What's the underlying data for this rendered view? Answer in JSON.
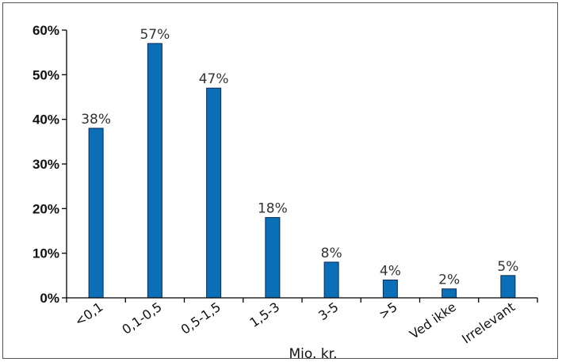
{
  "chart_data": {
    "type": "bar",
    "categories": [
      "<0,1",
      "0,1-0,5",
      "0,5-1,5",
      "1,5-3",
      "3-5",
      ">5",
      "Ved ikke",
      "Irrelevant"
    ],
    "values": [
      38,
      57,
      47,
      18,
      8,
      4,
      2,
      5
    ],
    "data_labels": [
      "38%",
      "57%",
      "47%",
      "18%",
      "8%",
      "4%",
      "2%",
      "5%"
    ],
    "xlabel": "Mio. kr.",
    "ylabel": "",
    "ylim": [
      0,
      60
    ],
    "yticks": [
      0,
      10,
      20,
      30,
      40,
      50,
      60
    ],
    "ytick_labels": [
      "0%",
      "10%",
      "20%",
      "30%",
      "40%",
      "50%",
      "60%"
    ],
    "bar_color": "#0a6fb7",
    "bar_edge_color": "#0a2a55",
    "grid": false,
    "legend": "none"
  }
}
